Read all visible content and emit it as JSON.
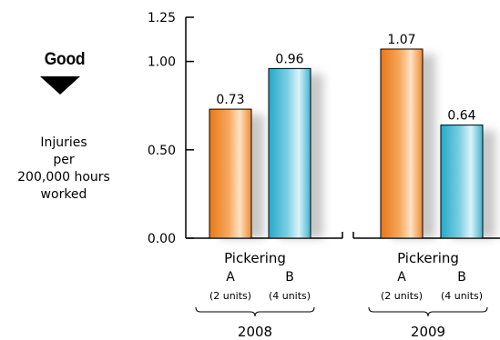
{
  "indicator": {
    "label": "Good",
    "arrow_icon": "down-triangle-icon"
  },
  "ylabel_lines": [
    "Injuries",
    "per",
    "200,000 hours",
    "worked"
  ],
  "chart_data": {
    "type": "bar",
    "ylim": [
      0,
      1.25
    ],
    "yticks": [
      "0.00",
      "0.50",
      "1.00",
      "1.25"
    ],
    "ytick_values": [
      0,
      0.5,
      1.0,
      1.25
    ],
    "groups": [
      {
        "year": "2008",
        "station": "Pickering",
        "bars": [
          {
            "unit": "A",
            "sub": "(2 units)",
            "value": 0.73,
            "label": "0.73",
            "color": "orange"
          },
          {
            "unit": "B",
            "sub": "(4 units)",
            "value": 0.96,
            "label": "0.96",
            "color": "blue"
          }
        ]
      },
      {
        "year": "2009",
        "station": "Pickering",
        "bars": [
          {
            "unit": "A",
            "sub": "(2 units)",
            "value": 1.07,
            "label": "1.07",
            "color": "orange"
          },
          {
            "unit": "B",
            "sub": "(4 units)",
            "value": 0.64,
            "label": "0.64",
            "color": "blue"
          }
        ]
      }
    ],
    "colors": {
      "orange_dark": "#e8781a",
      "orange_light": "#fde2c4",
      "blue_dark": "#28a8c8",
      "blue_light": "#dcf3fa"
    }
  }
}
